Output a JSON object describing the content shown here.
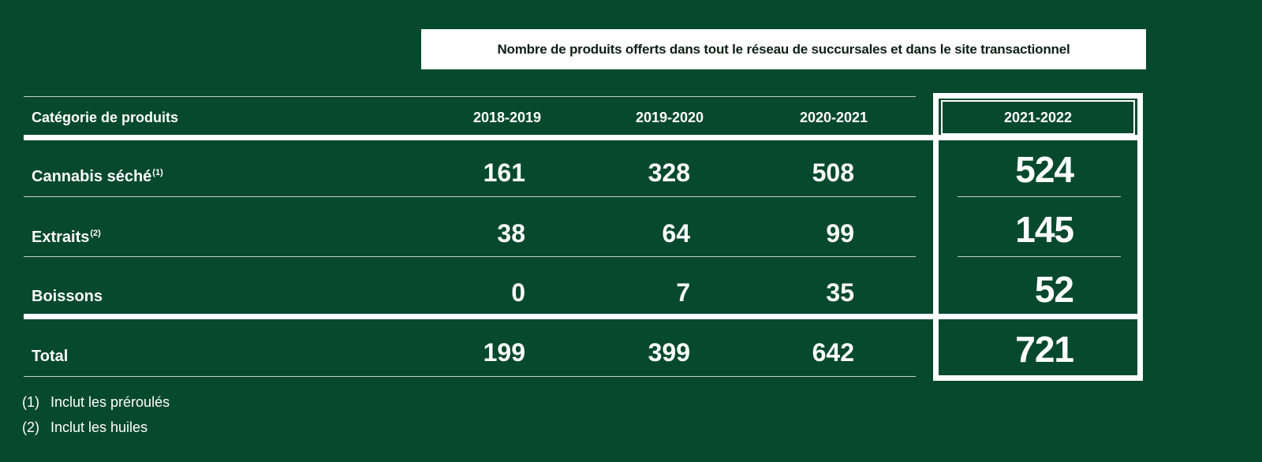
{
  "title": "Nombre de produits offerts dans tout le réseau de succursales et dans le site transactionnel",
  "table": {
    "category_header": "Catégorie de produits",
    "years": [
      "2018-2019",
      "2019-2020",
      "2020-2021"
    ],
    "highlight_year": "2021-2022",
    "rows": [
      {
        "label": "Cannabis séché",
        "note": "(1)",
        "values": [
          "161",
          "328",
          "508"
        ],
        "highlight": "524"
      },
      {
        "label": "Extraits",
        "note": "(2)",
        "values": [
          "38",
          "64",
          "99"
        ],
        "highlight": "145"
      },
      {
        "label": "Boissons",
        "note": "",
        "values": [
          "0",
          "7",
          "35"
        ],
        "highlight": "52"
      }
    ],
    "total": {
      "label": "Total",
      "values": [
        "199",
        "399",
        "642"
      ],
      "highlight": "721"
    }
  },
  "footnotes": [
    {
      "num": "(1)",
      "text": "Inclut les préroulés"
    },
    {
      "num": "(2)",
      "text": "Inclut les huiles"
    }
  ],
  "colors": {
    "background": "#07492d",
    "title_box": "#ffffff",
    "text": "#ffffff"
  }
}
